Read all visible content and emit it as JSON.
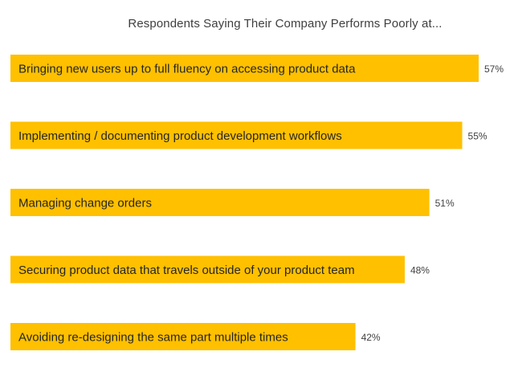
{
  "chart_data": {
    "type": "bar",
    "orientation": "horizontal",
    "title": "Respondents Saying Their Company Performs Poorly at...",
    "xlabel": "",
    "ylabel": "",
    "categories": [
      "Bringing new users up to full fluency on accessing product data",
      "Implementing / documenting product development workflows",
      "Managing change orders",
      "Securing product data that travels outside of your product team",
      "Avoiding re-designing the same part multiple times"
    ],
    "values": [
      57,
      55,
      51,
      48,
      42
    ],
    "value_labels": [
      "57%",
      "55%",
      "51%",
      "48%",
      "42%"
    ],
    "unit": "%",
    "xlim": [
      0,
      57
    ],
    "grid": false,
    "legend": "none",
    "bar_color": "#FFC000",
    "label_color": "#262626",
    "value_label_color": "#404040"
  }
}
